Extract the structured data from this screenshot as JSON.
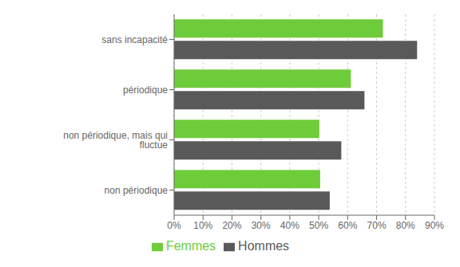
{
  "chart_data": {
    "type": "bar",
    "orientation": "horizontal",
    "categories": [
      "sans incapacité",
      "périodique",
      "non périodique, mais qui fluctue",
      "non périodique"
    ],
    "series": [
      {
        "name": "Femmes",
        "color": "#6ecc3a",
        "values": [
          72.2,
          61.1,
          50.2,
          50.5
        ]
      },
      {
        "name": "Hommes",
        "color": "#595959",
        "values": [
          84.0,
          65.8,
          57.8,
          53.8
        ]
      }
    ],
    "xlim": [
      0,
      90
    ],
    "xticks": [
      {
        "value": 0,
        "label": "0%"
      },
      {
        "value": 10,
        "label": "10%"
      },
      {
        "value": 20,
        "label": "20%"
      },
      {
        "value": 30,
        "label": "30%"
      },
      {
        "value": 40,
        "label": "40%"
      },
      {
        "value": 50,
        "label": "50%"
      },
      {
        "value": 60,
        "label": "60%"
      },
      {
        "value": 70,
        "label": "70%"
      },
      {
        "value": 80,
        "label": "80%"
      },
      {
        "value": 90,
        "label": "90%"
      }
    ],
    "grid": true,
    "legend": "bottom"
  }
}
